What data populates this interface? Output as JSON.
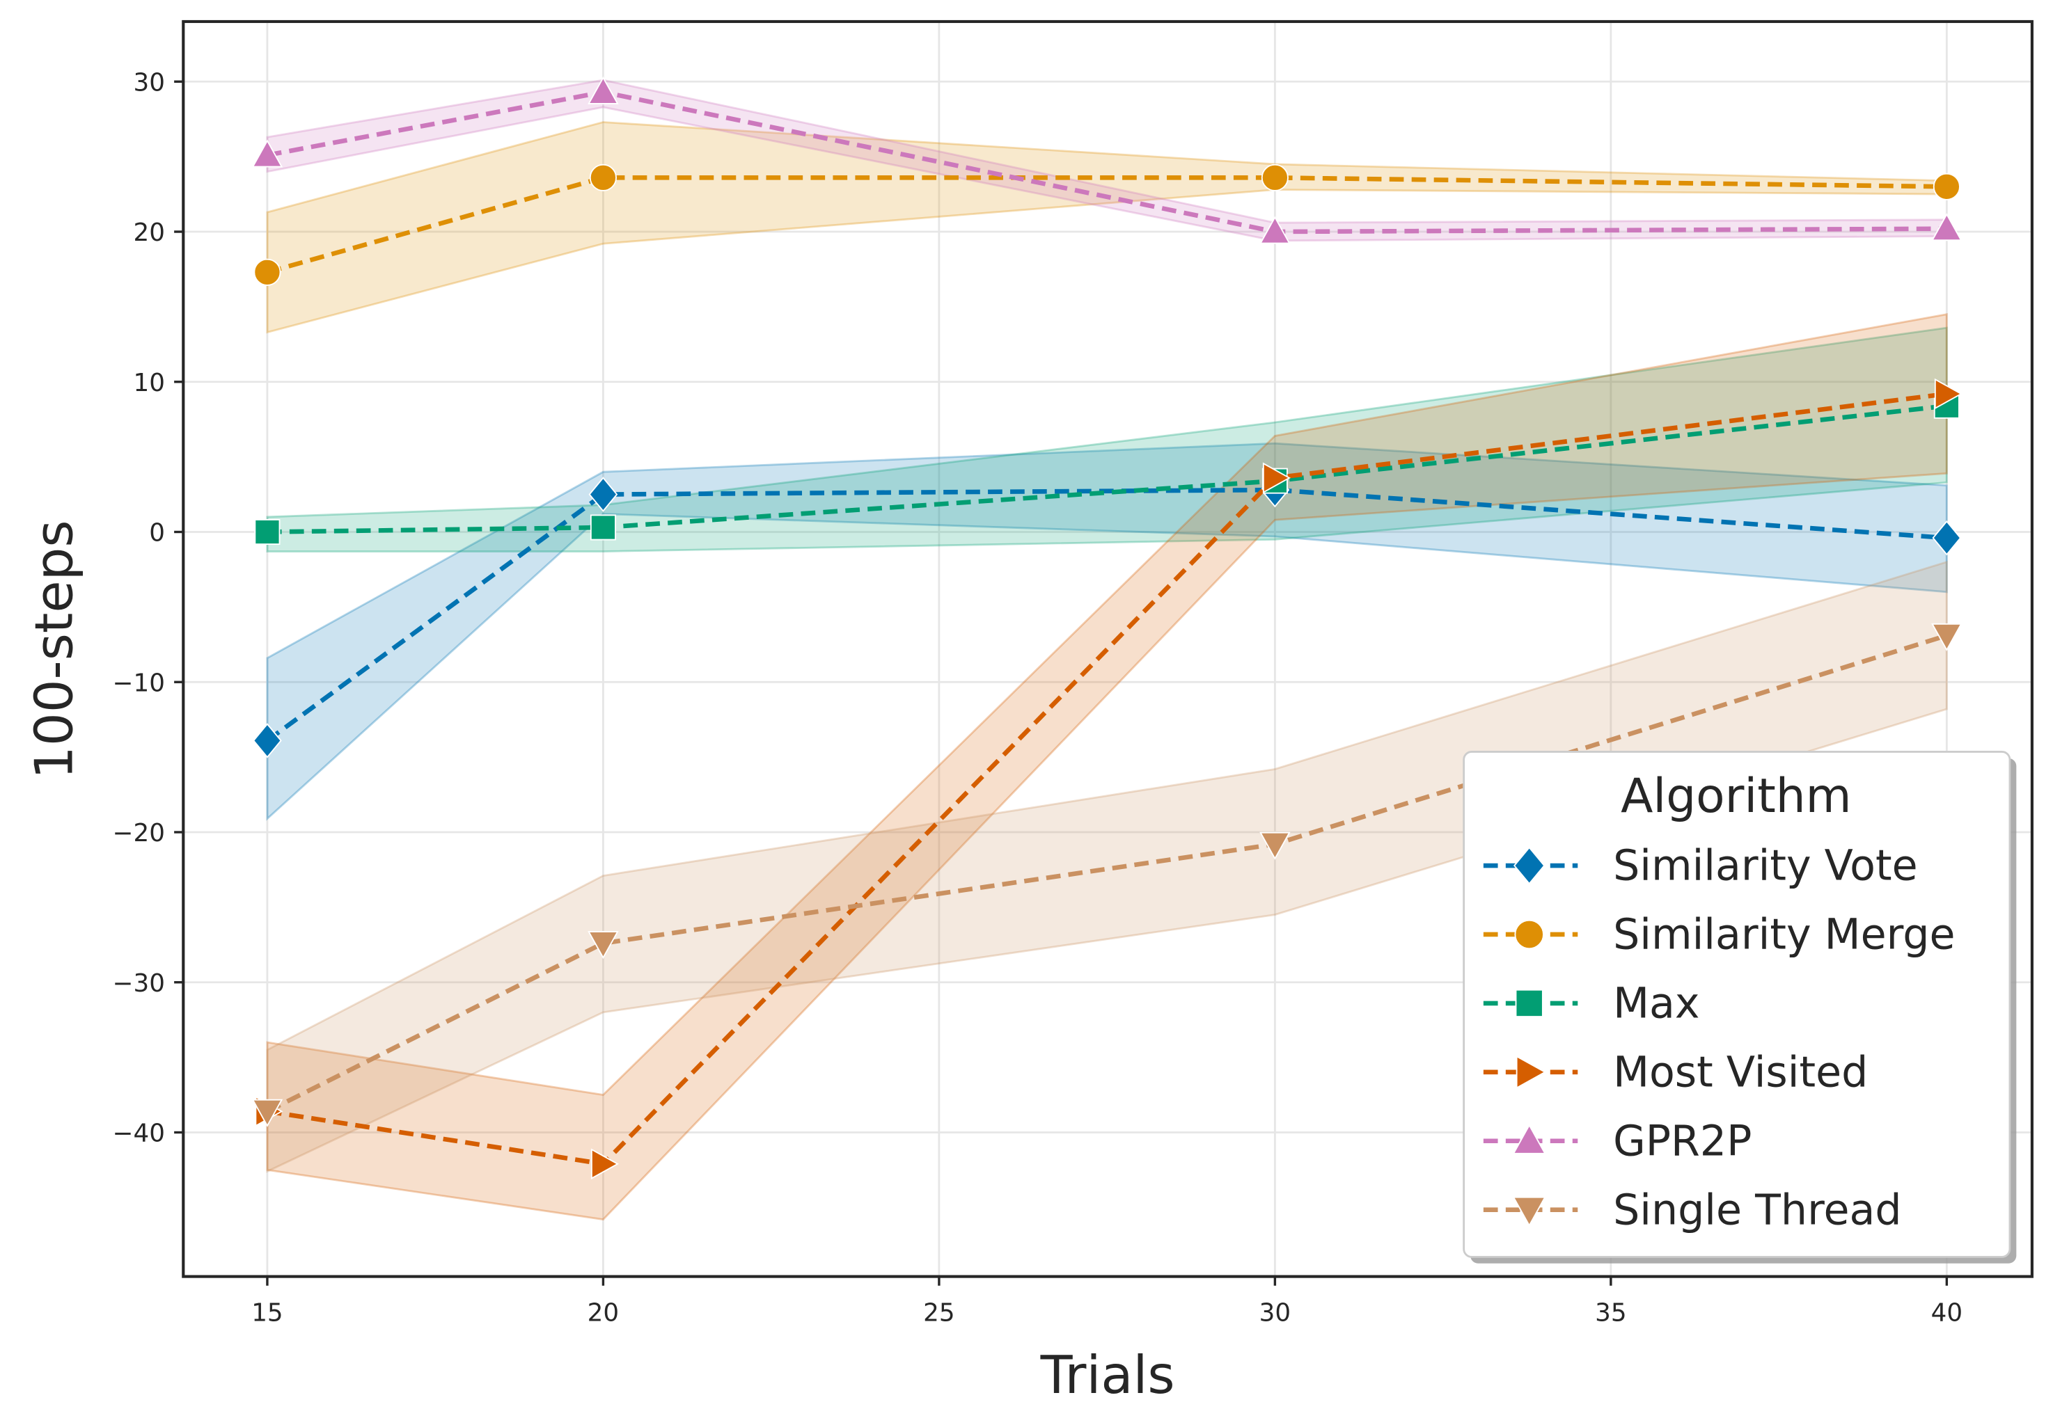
{
  "chart_data": {
    "type": "line",
    "title": "",
    "xlabel": "Trials",
    "ylabel": "100-steps",
    "xlim": [
      13.75,
      41.27
    ],
    "ylim": [
      -49.6,
      34.0
    ],
    "xticks": [
      15,
      20,
      25,
      30,
      35,
      40
    ],
    "yticks": [
      -40,
      -30,
      -20,
      -10,
      0,
      10,
      20,
      30
    ],
    "grid": true,
    "legend": {
      "title": "Algorithm",
      "placement": "lower-right"
    },
    "x": [
      15,
      20,
      30,
      40
    ],
    "series": [
      {
        "name": "Similarity Vote",
        "color": "#0173b2",
        "marker": "diamond",
        "values": [
          -13.9,
          2.5,
          2.8,
          -0.4
        ],
        "lower": [
          -19.1,
          1.2,
          -0.3,
          -4.0
        ],
        "upper": [
          -8.4,
          4.0,
          5.9,
          3.1
        ]
      },
      {
        "name": "Similarity Merge",
        "color": "#de8f05",
        "marker": "circle",
        "values": [
          17.3,
          23.6,
          23.6,
          23.0
        ],
        "lower": [
          13.3,
          19.2,
          22.8,
          22.5
        ],
        "upper": [
          21.3,
          27.3,
          24.5,
          23.4
        ]
      },
      {
        "name": "Max",
        "color": "#029e73",
        "marker": "square",
        "values": [
          0.0,
          0.3,
          3.4,
          8.4
        ],
        "lower": [
          -1.3,
          -1.3,
          -0.5,
          3.3
        ],
        "upper": [
          1.0,
          1.8,
          7.3,
          13.6
        ]
      },
      {
        "name": "Most Visited",
        "color": "#d55e00",
        "marker": "triangle-right",
        "values": [
          -38.6,
          -42.1,
          3.6,
          9.2
        ],
        "lower": [
          -42.5,
          -45.8,
          0.8,
          3.9
        ],
        "upper": [
          -34.0,
          -37.5,
          6.4,
          14.5
        ]
      },
      {
        "name": "GPR2P",
        "color": "#cc78bc",
        "marker": "triangle-up",
        "values": [
          25.1,
          29.3,
          20.0,
          20.2
        ],
        "lower": [
          24.0,
          28.3,
          19.4,
          19.7
        ],
        "upper": [
          26.3,
          30.1,
          20.6,
          20.8
        ]
      },
      {
        "name": "Single Thread",
        "color": "#ca9161",
        "marker": "triangle-down",
        "values": [
          -38.6,
          -27.4,
          -20.8,
          -6.9
        ],
        "lower": [
          -42.6,
          -32.0,
          -25.5,
          -11.8
        ],
        "upper": [
          -34.5,
          -22.9,
          -15.8,
          -2.0
        ]
      }
    ]
  }
}
